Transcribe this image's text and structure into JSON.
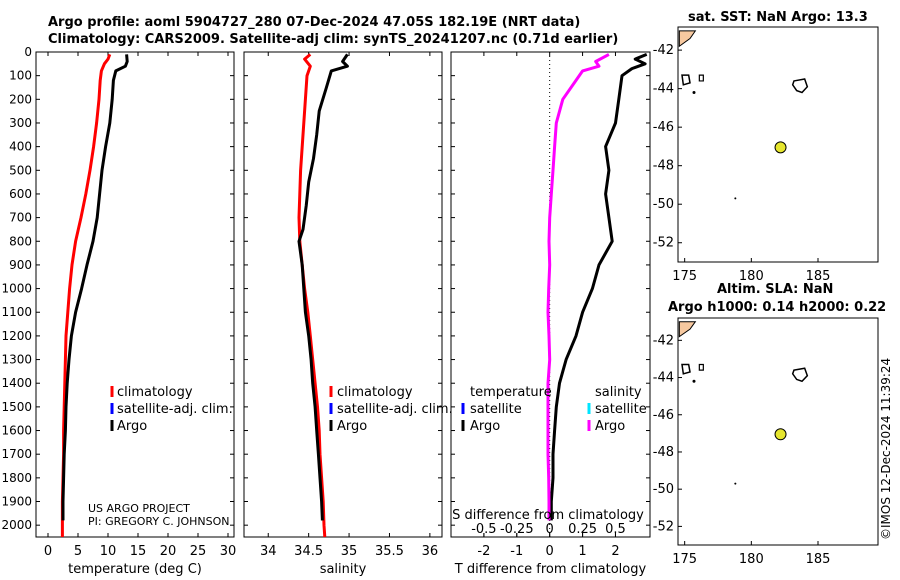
{
  "titles": {
    "line1": "Argo profile: aoml 5904727_280 07-Dec-2024 47.05S 182.19E (NRT data)",
    "line2": "Climatology: CARS2009. Satellite-adj clim: synTS_20241207.nc (0.71d earlier)",
    "sst": "sat. SST: NaN Argo: 13.3",
    "sla1": "Altim. SLA: NaN",
    "sla2": "Argo h1000: 0.14 h2000: 0.22",
    "watermark": "©IMOS 12-Dec-2024 11:39:24"
  },
  "credit": {
    "line1": "US ARGO PROJECT",
    "line2": "PI: GREGORY C. JOHNSON"
  },
  "legends": {
    "temp": [
      "climatology",
      "satellite-adj. clim.",
      "Argo"
    ],
    "sal": [
      "climatology",
      "satellite-adj. clim.",
      "Argo"
    ],
    "diff_temp_title": "temperature",
    "diff_sal_title": "salinity",
    "diff_items": [
      "satellite",
      "Argo"
    ],
    "diff_sal_items": [
      "satellite",
      "Argo"
    ]
  },
  "colors": {
    "climatology": "#ff0000",
    "satellite": "#0000ff",
    "argo": "#000000",
    "sal_diff": "#ff00ff",
    "sal_sat": "#00e5ff",
    "island": "#f7c9a0",
    "float": "#e6e62e"
  },
  "chart_data": [
    {
      "type": "line",
      "name": "temperature",
      "xlabel": "temperature (deg C)",
      "ylabel": "",
      "xlim": [
        -2,
        31
      ],
      "ylim": [
        2050,
        0
      ],
      "xticks": [
        0,
        5,
        10,
        15,
        20,
        25,
        30
      ],
      "yticks": [
        0,
        100,
        200,
        300,
        400,
        500,
        600,
        700,
        800,
        900,
        1000,
        1100,
        1200,
        1300,
        1400,
        1500,
        1600,
        1700,
        1800,
        1900,
        2000
      ],
      "series": [
        {
          "name": "climatology",
          "color": "#ff0000",
          "points": [
            [
              10.3,
              10
            ],
            [
              10.0,
              30
            ],
            [
              9.4,
              50
            ],
            [
              8.9,
              80
            ],
            [
              8.7,
              120
            ],
            [
              8.5,
              200
            ],
            [
              8.1,
              300
            ],
            [
              7.6,
              400
            ],
            [
              7.0,
              500
            ],
            [
              6.3,
              600
            ],
            [
              5.5,
              700
            ],
            [
              4.6,
              800
            ],
            [
              4.0,
              900
            ],
            [
              3.6,
              1000
            ],
            [
              3.3,
              1100
            ],
            [
              3.0,
              1200
            ],
            [
              2.9,
              1300
            ],
            [
              2.8,
              1400
            ],
            [
              2.7,
              1500
            ],
            [
              2.6,
              1600
            ],
            [
              2.6,
              1700
            ],
            [
              2.5,
              1800
            ],
            [
              2.4,
              1900
            ],
            [
              2.4,
              2000
            ],
            [
              2.4,
              2050
            ]
          ]
        },
        {
          "name": "Argo",
          "color": "#000000",
          "points": [
            [
              13.1,
              10
            ],
            [
              13.2,
              40
            ],
            [
              12.9,
              60
            ],
            [
              11.3,
              80
            ],
            [
              10.9,
              120
            ],
            [
              10.7,
              200
            ],
            [
              10.3,
              300
            ],
            [
              9.6,
              400
            ],
            [
              9.0,
              500
            ],
            [
              8.6,
              600
            ],
            [
              8.2,
              700
            ],
            [
              7.5,
              800
            ],
            [
              6.5,
              900
            ],
            [
              5.6,
              1000
            ],
            [
              4.6,
              1100
            ],
            [
              3.9,
              1200
            ],
            [
              3.5,
              1300
            ],
            [
              3.2,
              1400
            ],
            [
              3.0,
              1500
            ],
            [
              2.9,
              1600
            ],
            [
              2.7,
              1700
            ],
            [
              2.6,
              1800
            ],
            [
              2.5,
              1900
            ],
            [
              2.5,
              1980
            ]
          ]
        }
      ]
    },
    {
      "type": "line",
      "name": "salinity",
      "xlabel": "salinity",
      "xlim": [
        33.7,
        36.15
      ],
      "ylim": [
        2050,
        0
      ],
      "xticks": [
        34,
        34.5,
        35,
        35.5,
        36
      ],
      "series": [
        {
          "name": "climatology",
          "color": "#ff0000",
          "points": [
            [
              34.52,
              10
            ],
            [
              34.45,
              30
            ],
            [
              34.52,
              60
            ],
            [
              34.48,
              100
            ],
            [
              34.46,
              200
            ],
            [
              34.44,
              300
            ],
            [
              34.42,
              400
            ],
            [
              34.4,
              500
            ],
            [
              34.39,
              600
            ],
            [
              34.38,
              700
            ],
            [
              34.39,
              800
            ],
            [
              34.42,
              900
            ],
            [
              34.45,
              1000
            ],
            [
              34.49,
              1100
            ],
            [
              34.52,
              1200
            ],
            [
              34.55,
              1300
            ],
            [
              34.58,
              1400
            ],
            [
              34.61,
              1500
            ],
            [
              34.63,
              1600
            ],
            [
              34.64,
              1700
            ],
            [
              34.66,
              1800
            ],
            [
              34.68,
              1900
            ],
            [
              34.69,
              2000
            ],
            [
              34.7,
              2050
            ]
          ]
        },
        {
          "name": "Argo",
          "color": "#000000",
          "points": [
            [
              34.98,
              10
            ],
            [
              34.92,
              40
            ],
            [
              34.98,
              60
            ],
            [
              34.78,
              80
            ],
            [
              34.72,
              150
            ],
            [
              34.63,
              250
            ],
            [
              34.6,
              350
            ],
            [
              34.56,
              450
            ],
            [
              34.5,
              550
            ],
            [
              34.47,
              650
            ],
            [
              34.43,
              750
            ],
            [
              34.38,
              800
            ],
            [
              34.42,
              900
            ],
            [
              34.44,
              1000
            ],
            [
              34.46,
              1100
            ],
            [
              34.5,
              1200
            ],
            [
              34.53,
              1300
            ],
            [
              34.55,
              1400
            ],
            [
              34.58,
              1500
            ],
            [
              34.6,
              1600
            ],
            [
              34.62,
              1700
            ],
            [
              34.64,
              1800
            ],
            [
              34.66,
              1900
            ],
            [
              34.67,
              1980
            ]
          ]
        }
      ]
    },
    {
      "type": "line",
      "name": "difference from climatology",
      "xlabel": "T difference from climatology",
      "xlabel_top": "S difference from climatology",
      "xlim": [
        -3,
        3.05
      ],
      "ylim": [
        2050,
        0
      ],
      "xticks": [
        -2,
        -1,
        0,
        1,
        2
      ],
      "xticklabels": [
        "-2",
        "-1",
        "0",
        "1",
        "2"
      ],
      "sticks": [
        -0.5,
        -0.25,
        0,
        0.25,
        0.5
      ],
      "sticklabels": [
        "-0.5",
        "-0.25",
        "0",
        "0.25",
        "0.5"
      ],
      "series": [
        {
          "name": "Argo T difference",
          "color": "#000000",
          "points": [
            [
              2.95,
              10
            ],
            [
              2.6,
              30
            ],
            [
              2.9,
              50
            ],
            [
              2.5,
              70
            ],
            [
              2.2,
              100
            ],
            [
              2.1,
              200
            ],
            [
              2.0,
              300
            ],
            [
              1.7,
              400
            ],
            [
              1.8,
              500
            ],
            [
              1.7,
              600
            ],
            [
              1.8,
              700
            ],
            [
              1.9,
              800
            ],
            [
              1.5,
              900
            ],
            [
              1.3,
              1000
            ],
            [
              1.0,
              1100
            ],
            [
              0.8,
              1200
            ],
            [
              0.5,
              1300
            ],
            [
              0.3,
              1400
            ],
            [
              0.2,
              1500
            ],
            [
              0.15,
              1600
            ],
            [
              0.1,
              1700
            ],
            [
              0.1,
              1800
            ],
            [
              0.05,
              1900
            ],
            [
              0.05,
              1980
            ]
          ]
        },
        {
          "name": "Argo S difference",
          "color": "#ff00ff",
          "points": [
            [
              1.8,
              10
            ],
            [
              1.4,
              40
            ],
            [
              1.5,
              60
            ],
            [
              1.0,
              80
            ],
            [
              0.8,
              120
            ],
            [
              0.4,
              200
            ],
            [
              0.2,
              300
            ],
            [
              0.15,
              400
            ],
            [
              0.1,
              500
            ],
            [
              0.05,
              600
            ],
            [
              0.0,
              700
            ],
            [
              -0.02,
              800
            ],
            [
              0.0,
              900
            ],
            [
              -0.03,
              1000
            ],
            [
              -0.05,
              1100
            ],
            [
              -0.02,
              1200
            ],
            [
              0.0,
              1300
            ],
            [
              -0.05,
              1400
            ],
            [
              -0.05,
              1500
            ],
            [
              -0.05,
              1600
            ],
            [
              -0.05,
              1700
            ],
            [
              -0.03,
              1800
            ],
            [
              -0.02,
              1900
            ],
            [
              -0.02,
              1980
            ]
          ]
        }
      ]
    },
    {
      "type": "scatter",
      "name": "location map SST",
      "xlim": [
        174.5,
        189.5
      ],
      "ylim": [
        -53,
        -40.8
      ],
      "xticks": [
        175,
        180,
        185
      ],
      "yticks": [
        -42,
        -44,
        -46,
        -48,
        -50,
        -52
      ],
      "float": [
        182.19,
        -47.05
      ]
    },
    {
      "type": "scatter",
      "name": "location map SLA",
      "xlim": [
        174.5,
        189.5
      ],
      "ylim": [
        -53,
        -40.8
      ],
      "xticks": [
        175,
        180,
        185
      ],
      "yticks": [
        -42,
        -44,
        -46,
        -48,
        -50,
        -52
      ],
      "float": [
        182.19,
        -47.05
      ]
    }
  ]
}
